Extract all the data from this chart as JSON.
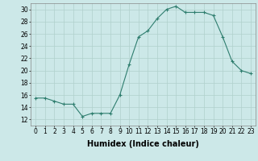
{
  "x": [
    0,
    1,
    2,
    3,
    4,
    5,
    6,
    7,
    8,
    9,
    10,
    11,
    12,
    13,
    14,
    15,
    16,
    17,
    18,
    19,
    20,
    21,
    22,
    23
  ],
  "y": [
    15.5,
    15.5,
    15.0,
    14.5,
    14.5,
    12.5,
    13.0,
    13.0,
    13.0,
    16.0,
    21.0,
    25.5,
    26.5,
    28.5,
    30.0,
    30.5,
    29.5,
    29.5,
    29.5,
    29.0,
    25.5,
    21.5,
    20.0,
    19.5
  ],
  "xlabel": "Humidex (Indice chaleur)",
  "ylim": [
    11,
    31
  ],
  "xlim": [
    -0.5,
    23.5
  ],
  "yticks": [
    12,
    14,
    16,
    18,
    20,
    22,
    24,
    26,
    28,
    30
  ],
  "xticks": [
    0,
    1,
    2,
    3,
    4,
    5,
    6,
    7,
    8,
    9,
    10,
    11,
    12,
    13,
    14,
    15,
    16,
    17,
    18,
    19,
    20,
    21,
    22,
    23
  ],
  "xtick_labels": [
    "0",
    "1",
    "2",
    "3",
    "4",
    "5",
    "6",
    "7",
    "8",
    "9",
    "10",
    "11",
    "12",
    "13",
    "14",
    "15",
    "16",
    "17",
    "18",
    "19",
    "20",
    "21",
    "22",
    "23"
  ],
  "line_color": "#2e7d6e",
  "marker": "+",
  "bg_color": "#cce8e8",
  "grid_color": "#b0d0cc",
  "xlabel_fontsize": 7,
  "tick_fontsize": 5.5
}
